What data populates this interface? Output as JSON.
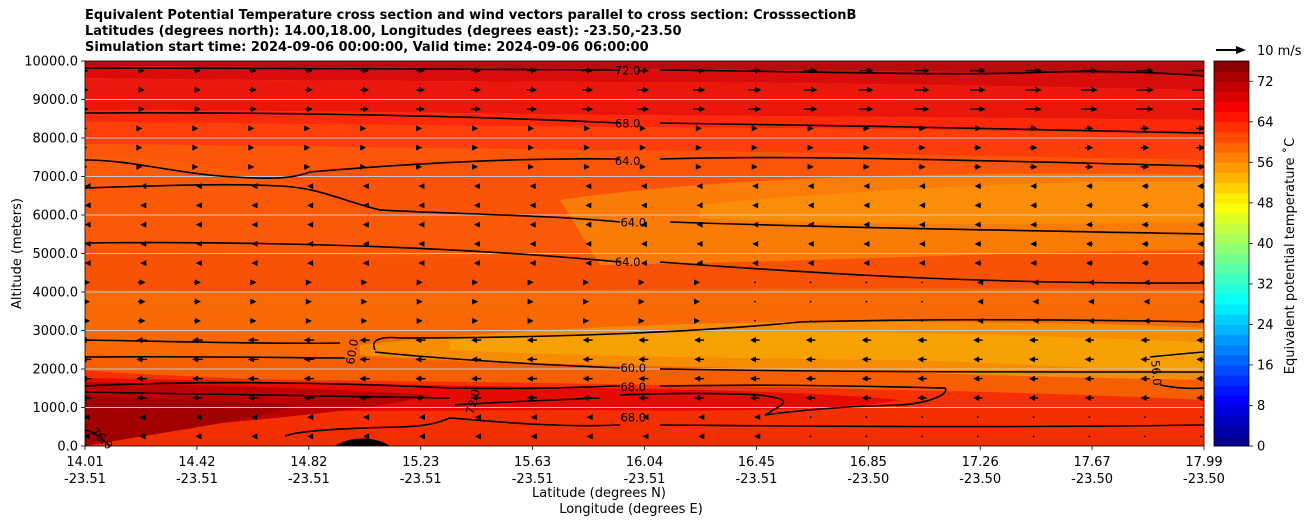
{
  "title": {
    "line1": "Equivalent Potential Temperature cross section and wind vectors parallel to cross section: CrosssectionB",
    "line2": "Latitudes (degrees north): 14.00,18.00, Longitudes (degrees east): -23.50,-23.50",
    "line3": "Simulation start time: 2024-09-06 00:00:00, Valid time: 2024-09-06 06:00:00"
  },
  "chart_data": {
    "type": "heatmap",
    "ylabel": "Altitude (meters)",
    "xlabel_lat": "Latitude (degrees N)",
    "xlabel_lon": "Longitude (degrees E)",
    "ylim": [
      0,
      10000
    ],
    "y_ticks": [
      "0.0",
      "1000.0",
      "2000.0",
      "3000.0",
      "4000.0",
      "5000.0",
      "6000.0",
      "7000.0",
      "8000.0",
      "9000.0",
      "10000.0"
    ],
    "x_ticks_lat": [
      "14.01",
      "14.42",
      "14.82",
      "15.23",
      "15.63",
      "16.04",
      "16.45",
      "16.85",
      "17.26",
      "17.67",
      "17.99"
    ],
    "x_ticks_lon": [
      "-23.51",
      "-23.51",
      "-23.51",
      "-23.51",
      "-23.51",
      "-23.51",
      "-23.51",
      "-23.50",
      "-23.50",
      "-23.50",
      "-23.50"
    ],
    "horizontal_grid": true,
    "colorbar": {
      "label": "Equivalent potential temperature ˚C",
      "range": [
        0,
        76
      ],
      "ticks": [
        "0",
        "8",
        "16",
        "24",
        "32",
        "40",
        "48",
        "56",
        "64",
        "72"
      ]
    },
    "wind_key": "10 m/s",
    "contour_labels": [
      {
        "text": "72.0",
        "lat": 15.94,
        "alt": 9750
      },
      {
        "text": "68.0",
        "lat": 15.94,
        "alt": 8380
      },
      {
        "text": "64.0",
        "lat": 15.94,
        "alt": 7400
      },
      {
        "text": "64.0",
        "lat": 15.96,
        "alt": 5800
      },
      {
        "text": "64.0",
        "lat": 15.94,
        "alt": 4780
      },
      {
        "text": "60.0",
        "lat": 15.96,
        "alt": 2020
      },
      {
        "text": "68.0",
        "lat": 15.96,
        "alt": 1530
      },
      {
        "text": "68.0",
        "lat": 15.96,
        "alt": 740
      },
      {
        "text": "60.0",
        "lat": 14.96,
        "alt": 2450
      },
      {
        "text": "72.0",
        "lat": 15.39,
        "alt": 1150
      },
      {
        "text": "76.0",
        "lat": 14.07,
        "alt": 200
      },
      {
        "text": "56.0",
        "lat": 17.82,
        "alt": 1900
      }
    ]
  }
}
